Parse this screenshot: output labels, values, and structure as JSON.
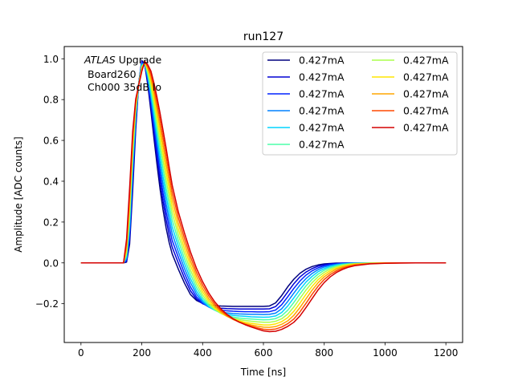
{
  "chart_data": {
    "type": "line",
    "title": "run127",
    "xlabel": "Time [ns]",
    "ylabel": "Amplitude [ADC counts]",
    "xlim": [
      -55,
      1255
    ],
    "ylim": [
      -0.39,
      1.06
    ],
    "xticks": [
      0,
      200,
      400,
      600,
      800,
      1000,
      1200
    ],
    "yticks": [
      -0.2,
      0.0,
      0.2,
      0.4,
      0.6,
      0.8,
      1.0
    ],
    "xtick_labels": [
      "0",
      "200",
      "400",
      "600",
      "800",
      "1000",
      "1200"
    ],
    "ytick_labels": [
      "−0.2",
      "0.0",
      "0.2",
      "0.4",
      "0.6",
      "0.8",
      "1.0"
    ],
    "grid": false,
    "legend_position": "top-right",
    "legend_columns": 2,
    "annotation": {
      "line1_italic": "ATLAS",
      "line1_rest": " Upgrade",
      "line2": "Board260",
      "line3": "Ch000 35dB lo"
    },
    "x": [
      0,
      50,
      100,
      130,
      140,
      150,
      160,
      170,
      180,
      190,
      200,
      210,
      220,
      230,
      240,
      250,
      260,
      270,
      280,
      290,
      300,
      320,
      340,
      360,
      380,
      400,
      420,
      440,
      460,
      480,
      500,
      520,
      540,
      560,
      580,
      600,
      620,
      640,
      660,
      680,
      700,
      720,
      740,
      760,
      780,
      800,
      820,
      840,
      860,
      880,
      900,
      950,
      1000,
      1050,
      1100,
      1150,
      1200
    ],
    "series": [
      {
        "name": "0.427mA",
        "color": "#00007f",
        "values": [
          0.0,
          0.0,
          0.0,
          0.0,
          0.0,
          0.004,
          0.092,
          0.354,
          0.653,
          0.882,
          0.992,
          0.967,
          0.869,
          0.743,
          0.611,
          0.482,
          0.363,
          0.259,
          0.171,
          0.1,
          0.044,
          -0.03,
          -0.098,
          -0.155,
          -0.184,
          -0.198,
          -0.205,
          -0.209,
          -0.211,
          -0.212,
          -0.213,
          -0.213,
          -0.213,
          -0.213,
          -0.213,
          -0.213,
          -0.211,
          -0.196,
          -0.16,
          -0.117,
          -0.08,
          -0.051,
          -0.031,
          -0.018,
          -0.01,
          -0.005,
          -0.003,
          -0.001,
          -0.001,
          0.0,
          0.0,
          0.0,
          0.0,
          0.0,
          0.0,
          0.0,
          0.0
        ]
      },
      {
        "name": "0.427mA",
        "color": "#0000d4",
        "values": [
          0.0,
          0.0,
          0.0,
          0.0,
          0.0,
          0.008,
          0.113,
          0.389,
          0.673,
          0.88,
          0.987,
          0.969,
          0.882,
          0.765,
          0.641,
          0.518,
          0.403,
          0.301,
          0.212,
          0.137,
          0.077,
          0.0,
          -0.074,
          -0.137,
          -0.177,
          -0.2,
          -0.212,
          -0.218,
          -0.222,
          -0.224,
          -0.225,
          -0.226,
          -0.226,
          -0.226,
          -0.226,
          -0.226,
          -0.225,
          -0.214,
          -0.183,
          -0.142,
          -0.102,
          -0.069,
          -0.045,
          -0.028,
          -0.016,
          -0.009,
          -0.005,
          -0.003,
          -0.001,
          -0.001,
          0.0,
          0.0,
          0.0,
          0.0,
          0.0,
          0.0,
          0.0
        ]
      },
      {
        "name": "0.427mA",
        "color": "#0022ff",
        "values": [
          0.0,
          0.0,
          0.0,
          0.0,
          0.0,
          0.013,
          0.137,
          0.424,
          0.693,
          0.879,
          0.982,
          0.971,
          0.894,
          0.787,
          0.671,
          0.554,
          0.442,
          0.341,
          0.251,
          0.174,
          0.11,
          0.028,
          -0.05,
          -0.118,
          -0.167,
          -0.198,
          -0.216,
          -0.226,
          -0.232,
          -0.235,
          -0.237,
          -0.238,
          -0.239,
          -0.239,
          -0.24,
          -0.24,
          -0.239,
          -0.231,
          -0.205,
          -0.166,
          -0.125,
          -0.089,
          -0.06,
          -0.039,
          -0.024,
          -0.014,
          -0.008,
          -0.005,
          -0.002,
          -0.001,
          -0.001,
          0.0,
          0.0,
          0.0,
          0.0,
          0.0,
          0.0
        ]
      },
      {
        "name": "0.427mA",
        "color": "#0080ff",
        "values": [
          0.0,
          0.0,
          0.0,
          0.0,
          0.0,
          0.02,
          0.162,
          0.456,
          0.711,
          0.878,
          0.977,
          0.973,
          0.905,
          0.809,
          0.7,
          0.589,
          0.481,
          0.381,
          0.29,
          0.211,
          0.143,
          0.055,
          -0.026,
          -0.097,
          -0.153,
          -0.192,
          -0.216,
          -0.231,
          -0.239,
          -0.245,
          -0.248,
          -0.25,
          -0.251,
          -0.252,
          -0.252,
          -0.253,
          -0.252,
          -0.246,
          -0.225,
          -0.189,
          -0.148,
          -0.109,
          -0.077,
          -0.052,
          -0.033,
          -0.02,
          -0.012,
          -0.007,
          -0.004,
          -0.002,
          -0.001,
          0.0,
          0.0,
          0.0,
          0.0,
          0.0,
          0.0
        ]
      },
      {
        "name": "0.427mA",
        "color": "#00d4ff",
        "values": [
          0.0,
          0.0,
          0.0,
          0.0,
          0.0,
          0.029,
          0.189,
          0.487,
          0.728,
          0.877,
          0.971,
          0.975,
          0.916,
          0.83,
          0.729,
          0.623,
          0.519,
          0.421,
          0.33,
          0.248,
          0.176,
          0.083,
          -0.002,
          -0.077,
          -0.138,
          -0.183,
          -0.213,
          -0.232,
          -0.244,
          -0.252,
          -0.257,
          -0.26,
          -0.262,
          -0.264,
          -0.265,
          -0.266,
          -0.265,
          -0.26,
          -0.243,
          -0.211,
          -0.171,
          -0.131,
          -0.094,
          -0.066,
          -0.043,
          -0.028,
          -0.017,
          -0.01,
          -0.006,
          -0.003,
          -0.002,
          0.0,
          0.0,
          0.0,
          0.0,
          0.0,
          0.0
        ]
      },
      {
        "name": "0.427mA",
        "color": "#4cffaa",
        "values": [
          0.0,
          0.0,
          0.0,
          0.0,
          0.0,
          0.039,
          0.217,
          0.516,
          0.743,
          0.876,
          0.966,
          0.977,
          0.926,
          0.85,
          0.756,
          0.657,
          0.557,
          0.46,
          0.369,
          0.285,
          0.21,
          0.11,
          0.022,
          -0.056,
          -0.121,
          -0.171,
          -0.207,
          -0.231,
          -0.247,
          -0.258,
          -0.265,
          -0.27,
          -0.273,
          -0.275,
          -0.277,
          -0.279,
          -0.278,
          -0.273,
          -0.259,
          -0.232,
          -0.194,
          -0.152,
          -0.113,
          -0.081,
          -0.055,
          -0.036,
          -0.023,
          -0.014,
          -0.008,
          -0.005,
          -0.003,
          -0.001,
          0.0,
          0.0,
          0.0,
          0.0,
          0.0
        ]
      },
      {
        "name": "0.427mA",
        "color": "#aaff4c",
        "values": [
          0.0,
          0.0,
          0.0,
          0.0,
          0.0,
          0.051,
          0.246,
          0.544,
          0.757,
          0.875,
          0.961,
          0.979,
          0.936,
          0.87,
          0.783,
          0.689,
          0.594,
          0.5,
          0.409,
          0.322,
          0.244,
          0.138,
          0.047,
          -0.035,
          -0.103,
          -0.157,
          -0.198,
          -0.227,
          -0.247,
          -0.261,
          -0.271,
          -0.278,
          -0.282,
          -0.286,
          -0.289,
          -0.291,
          -0.291,
          -0.286,
          -0.274,
          -0.251,
          -0.216,
          -0.174,
          -0.133,
          -0.097,
          -0.068,
          -0.046,
          -0.03,
          -0.019,
          -0.012,
          -0.007,
          -0.004,
          -0.001,
          0.0,
          0.0,
          0.0,
          0.0,
          0.0
        ]
      },
      {
        "name": "0.427mA",
        "color": "#ffe500",
        "values": [
          0.0,
          0.0,
          0.0,
          0.0,
          0.0,
          0.065,
          0.276,
          0.571,
          0.77,
          0.874,
          0.955,
          0.981,
          0.945,
          0.889,
          0.809,
          0.721,
          0.63,
          0.538,
          0.448,
          0.359,
          0.278,
          0.166,
          0.071,
          -0.013,
          -0.085,
          -0.142,
          -0.187,
          -0.221,
          -0.245,
          -0.262,
          -0.275,
          -0.284,
          -0.291,
          -0.296,
          -0.3,
          -0.304,
          -0.304,
          -0.299,
          -0.288,
          -0.268,
          -0.237,
          -0.197,
          -0.154,
          -0.115,
          -0.082,
          -0.057,
          -0.038,
          -0.025,
          -0.016,
          -0.01,
          -0.006,
          -0.002,
          0.0,
          0.0,
          0.0,
          0.0,
          0.0
        ]
      },
      {
        "name": "0.427mA",
        "color": "#ffa600",
        "values": [
          0.0,
          0.0,
          0.0,
          0.0,
          0.0,
          0.081,
          0.306,
          0.596,
          0.782,
          0.873,
          0.95,
          0.983,
          0.954,
          0.907,
          0.834,
          0.752,
          0.665,
          0.576,
          0.487,
          0.397,
          0.313,
          0.194,
          0.097,
          0.009,
          -0.066,
          -0.126,
          -0.175,
          -0.212,
          -0.24,
          -0.261,
          -0.277,
          -0.288,
          -0.297,
          -0.304,
          -0.31,
          -0.315,
          -0.316,
          -0.312,
          -0.301,
          -0.284,
          -0.257,
          -0.219,
          -0.176,
          -0.134,
          -0.097,
          -0.068,
          -0.047,
          -0.031,
          -0.02,
          -0.013,
          -0.008,
          -0.003,
          -0.001,
          0.0,
          0.0,
          0.0,
          0.0
        ]
      },
      {
        "name": "0.427mA",
        "color": "#ff4800",
        "values": [
          0.0,
          0.0,
          0.0,
          0.0,
          0.0,
          0.098,
          0.337,
          0.62,
          0.793,
          0.872,
          0.944,
          0.985,
          0.962,
          0.924,
          0.858,
          0.782,
          0.7,
          0.613,
          0.525,
          0.434,
          0.347,
          0.223,
          0.122,
          0.031,
          -0.047,
          -0.109,
          -0.161,
          -0.202,
          -0.233,
          -0.257,
          -0.276,
          -0.29,
          -0.301,
          -0.31,
          -0.318,
          -0.325,
          -0.327,
          -0.324,
          -0.314,
          -0.298,
          -0.275,
          -0.24,
          -0.198,
          -0.154,
          -0.114,
          -0.081,
          -0.057,
          -0.039,
          -0.026,
          -0.017,
          -0.011,
          -0.004,
          -0.001,
          0.0,
          0.0,
          0.0,
          0.0
        ]
      },
      {
        "name": "0.427mA",
        "color": "#d40000",
        "values": [
          0.0,
          0.0,
          0.0,
          0.0,
          0.0,
          0.117,
          0.367,
          0.643,
          0.803,
          0.871,
          0.938,
          0.987,
          0.97,
          0.94,
          0.881,
          0.811,
          0.734,
          0.649,
          0.563,
          0.47,
          0.381,
          0.251,
          0.148,
          0.054,
          -0.027,
          -0.092,
          -0.147,
          -0.191,
          -0.225,
          -0.252,
          -0.273,
          -0.29,
          -0.303,
          -0.314,
          -0.324,
          -0.333,
          -0.337,
          -0.335,
          -0.326,
          -0.311,
          -0.291,
          -0.26,
          -0.219,
          -0.175,
          -0.132,
          -0.096,
          -0.068,
          -0.047,
          -0.032,
          -0.021,
          -0.014,
          -0.005,
          -0.002,
          -0.001,
          0.0,
          0.0,
          0.0
        ]
      }
    ]
  }
}
